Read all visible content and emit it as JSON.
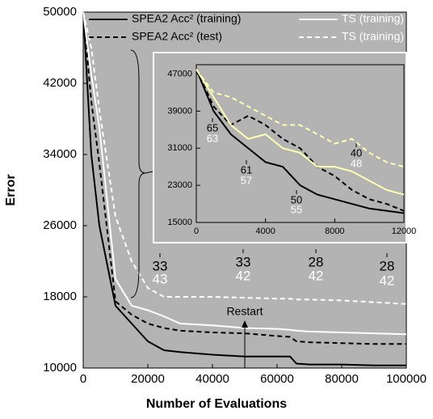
{
  "chart_data": [
    {
      "type": "line",
      "x_label": "Number of Evaluations",
      "y_label": "Error",
      "x": [
        0,
        2500,
        5000,
        10000,
        15000,
        20000,
        25000,
        30000,
        40000,
        50000,
        60000,
        64000,
        66000,
        70000,
        80000,
        90000,
        100000
      ],
      "series": [
        {
          "name": "SPEA2 Acc² (training)",
          "color": "#000000",
          "dash": false,
          "values": [
            50000,
            34000,
            26000,
            17000,
            15000,
            13000,
            12000,
            11800,
            11500,
            11300,
            11300,
            11300,
            10500,
            10400,
            10400,
            10300,
            10300
          ]
        },
        {
          "name": "SPEA2 Acc² (test)",
          "color": "#000000",
          "dash": true,
          "values": [
            50000,
            40000,
            33000,
            17500,
            16000,
            15000,
            14500,
            14200,
            14000,
            13900,
            13600,
            13500,
            13000,
            12900,
            12800,
            12700,
            12700
          ]
        },
        {
          "name": "TS (training)",
          "color": "#ffffff",
          "dash": false,
          "values": [
            50000,
            43000,
            37000,
            20000,
            17000,
            16500,
            15800,
            15000,
            14800,
            14500,
            14400,
            14300,
            14200,
            14100,
            14000,
            13900,
            13800
          ]
        },
        {
          "name": "TS (training)",
          "color": "#ffffff",
          "dash": true,
          "values": [
            50000,
            46000,
            39000,
            27000,
            22000,
            19000,
            18000,
            18000,
            18000,
            17900,
            17800,
            17800,
            17700,
            17700,
            17600,
            17400,
            17200
          ]
        }
      ],
      "xlim": [
        0,
        100000
      ],
      "xticks": [
        0,
        20000,
        40000,
        60000,
        80000,
        100000
      ],
      "ylim": [
        10000,
        50000
      ],
      "yticks": [
        10000,
        18000,
        26000,
        34000,
        42000,
        50000
      ],
      "annotations": [
        {
          "labels": [
            "33",
            "43"
          ]
        },
        {
          "labels": [
            "33",
            "42"
          ]
        },
        {
          "labels": [
            "28",
            "42"
          ]
        },
        {
          "labels": [
            "28",
            "42"
          ]
        },
        {
          "labels": [
            "Restart"
          ]
        }
      ]
    },
    {
      "type": "line",
      "x": [
        0,
        1000,
        2000,
        3000,
        4000,
        5000,
        6000,
        7000,
        8000,
        9000,
        10000,
        11000,
        12000
      ],
      "series": [
        {
          "color": "#000000",
          "dash": false,
          "values": [
            48000,
            39000,
            34000,
            31000,
            28000,
            27000,
            23000,
            21000,
            20000,
            19000,
            18000,
            17500,
            17000
          ]
        },
        {
          "color": "#000000",
          "dash": true,
          "values": [
            48000,
            40000,
            36000,
            38000,
            36000,
            33000,
            31000,
            27000,
            25000,
            22000,
            20000,
            19000,
            17500
          ]
        },
        {
          "color": "#ffffb0",
          "dash": false,
          "values": [
            48000,
            42000,
            36000,
            33000,
            34000,
            31000,
            30000,
            27000,
            27000,
            26000,
            24000,
            22000,
            21000
          ]
        },
        {
          "color": "#ffffb0",
          "dash": true,
          "values": [
            48000,
            43000,
            42000,
            40000,
            38000,
            36000,
            36000,
            34000,
            32000,
            33000,
            30000,
            28000,
            27000
          ]
        }
      ],
      "xlim": [
        0,
        12000
      ],
      "xticks": [
        0,
        4000,
        8000,
        12000
      ],
      "ylim": [
        15000,
        49000
      ],
      "yticks": [
        15000,
        23000,
        31000,
        39000,
        47000
      ],
      "annotations": [
        {
          "labels": [
            "65",
            "63"
          ]
        },
        {
          "labels": [
            "61",
            "57"
          ]
        },
        {
          "labels": [
            "50",
            "55"
          ]
        },
        {
          "labels": [
            "40",
            "48"
          ]
        }
      ]
    }
  ]
}
